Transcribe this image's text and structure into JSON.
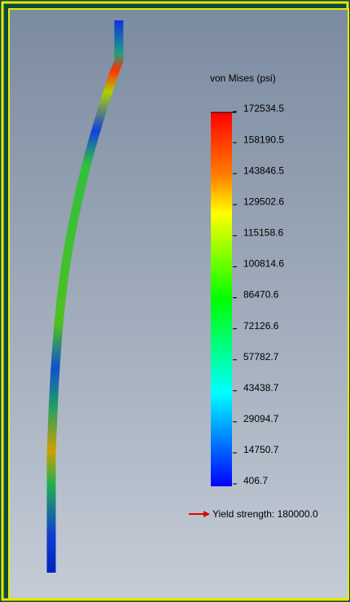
{
  "legend": {
    "title": "von Mises (psi)",
    "ticks": [
      "172534.5",
      "158190.5",
      "143846.5",
      "129502.6",
      "115158.6",
      "100814.6",
      "86470.6",
      "72126.6",
      "57782.7",
      "43438.7",
      "29094.7",
      "14750.7",
      "406.7"
    ]
  },
  "yield_label": "Yield strength: 180000.0"
}
